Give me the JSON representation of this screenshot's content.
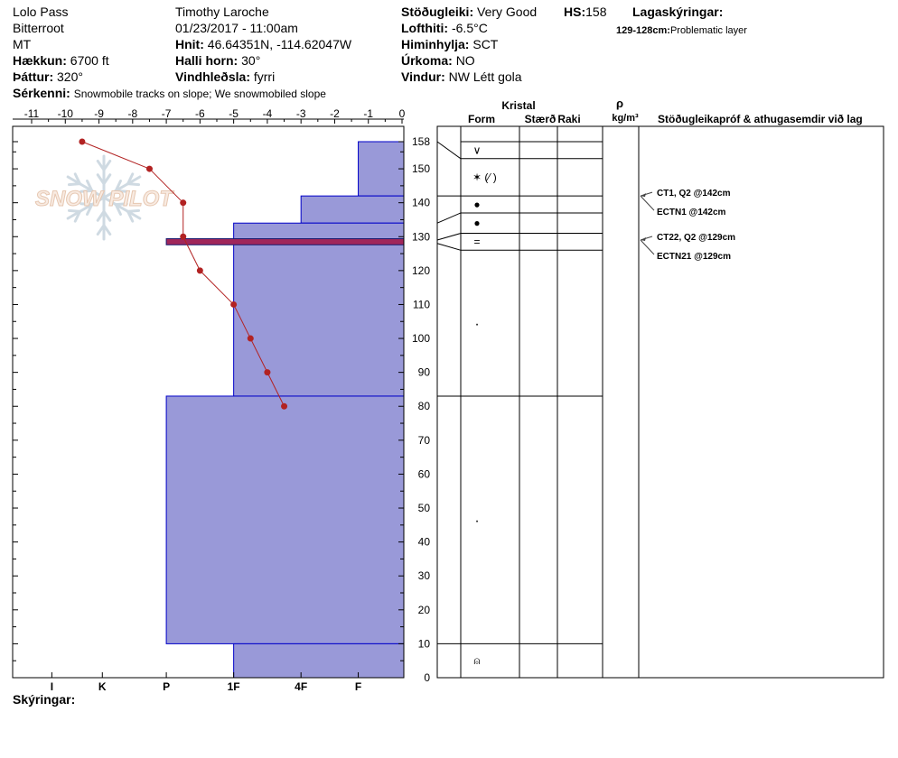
{
  "header": {
    "location": "Lolo Pass",
    "range": "Bitterroot",
    "state": "MT",
    "observer": "Timothy  Laroche",
    "datetime": "01/23/2017 - 11:00am",
    "elevation_label": "Hækkun:",
    "elevation_value": "6700 ft",
    "aspect_label": "Þáttur:",
    "aspect_value": "320°",
    "coords_label": "Hnit:",
    "coords_value": "46.64351N, -114.62047W",
    "slope_label": "Halli horn:",
    "slope_value": "30°",
    "wind_loading_label": "Vindhleðsla:",
    "wind_loading_value": "fyrri",
    "stability_label": "Stöðugleiki:",
    "stability_value": "Very Good",
    "air_temp_label": "Lofthiti:",
    "air_temp_value": "-6.5°C",
    "sky_label": "Himinhylja:",
    "sky_value": "SCT",
    "precip_label": "Úrkoma:",
    "precip_value": "NO",
    "wind_label": "Vindur:",
    "wind_value": "NW Létt gola",
    "hs_label": "HS:",
    "hs_value": "158",
    "layer_notes_label": "Lagaskýringar:",
    "layer_note_code": "129-128cm:",
    "layer_note_text": "Problematic layer",
    "features_label": "Sérkenni:",
    "features_value": "Snowmobile tracks on slope; We snowmobiled slope"
  },
  "footer": {
    "notes_label": "Skýringar:"
  },
  "watermark": {
    "text": "SNOW PILOT"
  },
  "columns": {
    "crystal": "Kristal",
    "form": "Form",
    "size": "Stærð",
    "moisture": "Raki",
    "density_symbol": "ρ",
    "density_unit": "kg/m³",
    "tests": "Stöðugleikapróf & athugasemdir við lag"
  },
  "chart_data": {
    "type": "snow-profile",
    "temperature_axis": {
      "range": [
        -11,
        0
      ],
      "ticks": [
        -11,
        -10,
        -9,
        -8,
        -7,
        -6,
        -5,
        -4,
        -3,
        -2,
        -1,
        0
      ],
      "tick_labels": [
        "-11",
        "-10",
        "-9",
        "-8",
        "-7",
        "-6",
        "-5",
        "-4",
        "-3",
        "-2",
        "-1",
        "0"
      ]
    },
    "height_axis": {
      "range": [
        0,
        158
      ],
      "ticks": [
        0,
        10,
        20,
        30,
        40,
        50,
        60,
        70,
        80,
        90,
        100,
        110,
        120,
        130,
        140,
        150,
        158
      ],
      "tick_labels": [
        "0",
        "10",
        "20",
        "30",
        "40",
        "50",
        "60",
        "70",
        "80",
        "90",
        "100",
        "110",
        "120",
        "130",
        "140",
        "150",
        "158"
      ]
    },
    "hardness_axis": {
      "labels": [
        "I",
        "K",
        "P",
        "1F",
        "4F",
        "F"
      ],
      "temp_equiv": [
        -10.4,
        -8.9,
        -7,
        -5,
        -3,
        -1.3
      ]
    },
    "temperature_profile": {
      "color": "#b22222",
      "points": [
        {
          "h": 158,
          "t": -9.5
        },
        {
          "h": 150,
          "t": -7.5
        },
        {
          "h": 140,
          "t": -6.5
        },
        {
          "h": 130,
          "t": -6.5
        },
        {
          "h": 120,
          "t": -6
        },
        {
          "h": 110,
          "t": -5
        },
        {
          "h": 100,
          "t": -4.5
        },
        {
          "h": 90,
          "t": -4
        },
        {
          "h": 80,
          "t": -3.5
        }
      ]
    },
    "hardness_layers": [
      {
        "top": 158,
        "bottom": 142,
        "hardness": "F"
      },
      {
        "top": 142,
        "bottom": 134,
        "hardness": "F-4F"
      },
      {
        "top": 134,
        "bottom": 83,
        "hardness": "1F"
      },
      {
        "top": 83,
        "bottom": 10,
        "hardness": "P"
      },
      {
        "top": 10,
        "bottom": 0,
        "hardness": "1F"
      }
    ],
    "hardness_fill": "#9999d8",
    "problem_layer": {
      "top": 129,
      "bottom": 128
    },
    "layer_boundaries": [
      158,
      153,
      142,
      137,
      131,
      126,
      83,
      10,
      0
    ],
    "layers": [
      {
        "top": 158,
        "bottom": 153,
        "form": "∨"
      },
      {
        "top": 153,
        "bottom": 142,
        "form": "✶ (⁄ )"
      },
      {
        "top": 142,
        "bottom": 137,
        "form": "●"
      },
      {
        "top": 137,
        "bottom": 131,
        "form": "●"
      },
      {
        "top": 131,
        "bottom": 126,
        "form": "="
      },
      {
        "top": 126,
        "bottom": 83,
        "form": "·"
      },
      {
        "top": 83,
        "bottom": 10,
        "form": "·"
      },
      {
        "top": 10,
        "bottom": 0,
        "form": "⍝"
      }
    ],
    "tests": [
      {
        "height": 142,
        "label": "CT1, Q2 @142cm"
      },
      {
        "height": 142,
        "label": "ECTN1 @142cm"
      },
      {
        "height": 129,
        "label": "CT22, Q2 @129cm"
      },
      {
        "height": 129,
        "label": "ECTN21 @129cm"
      }
    ]
  }
}
